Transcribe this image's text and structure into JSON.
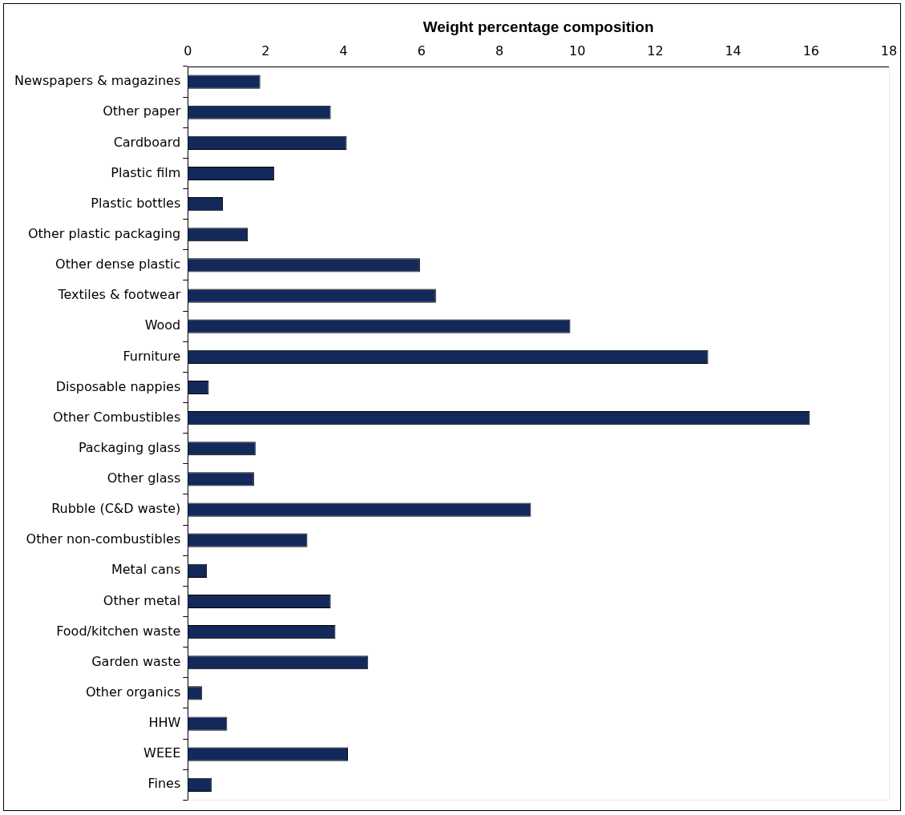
{
  "chart_data": {
    "type": "bar",
    "orientation": "horizontal",
    "xlabel": "Weight percentage composition",
    "categories": [
      "Newspapers & magazines",
      "Other paper",
      "Cardboard",
      "Plastic film",
      "Plastic bottles",
      "Other plastic packaging",
      "Other dense plastic",
      "Textiles & footwear",
      "Wood",
      "Furniture",
      "Disposable nappies",
      "Other Combustibles",
      "Packaging glass",
      "Other glass",
      "Rubble (C&D waste)",
      "Other non-combustibles",
      "Metal cans",
      "Other metal",
      "Food/kitchen waste",
      "Garden waste",
      "Other organics",
      "HHW",
      "WEEE",
      "Fines"
    ],
    "values": [
      1.86,
      3.67,
      4.08,
      2.22,
      0.9,
      1.54,
      5.96,
      6.37,
      9.82,
      13.36,
      0.54,
      15.97,
      1.74,
      1.7,
      8.81,
      3.07,
      0.49,
      3.67,
      3.79,
      4.63,
      0.37,
      1.01,
      4.11,
      0.61
    ],
    "color": "#13295a",
    "xlim": [
      0,
      18
    ],
    "xticks": [
      0,
      2,
      4,
      6,
      8,
      10,
      12,
      14,
      16,
      18
    ],
    "grid": false,
    "legend": false
  }
}
